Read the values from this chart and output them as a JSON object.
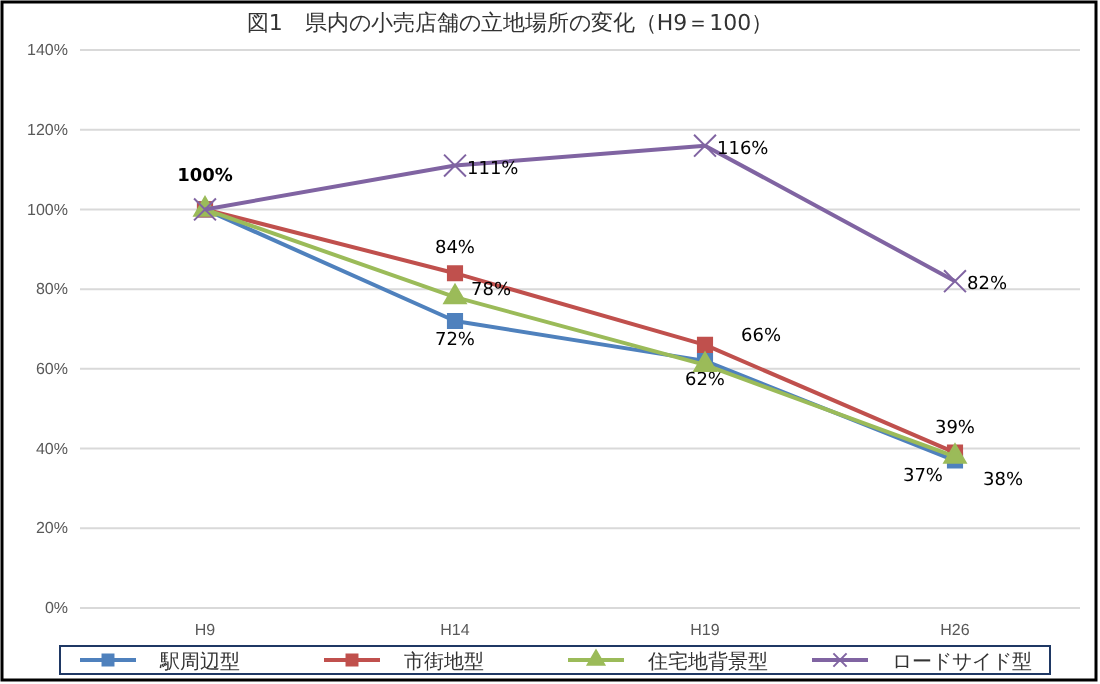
{
  "chart_data": {
    "type": "line",
    "title": "図1　県内の小売店舗の立地場所の変化（H9＝100）",
    "categories": [
      "H9",
      "H14",
      "H19",
      "H26"
    ],
    "series": [
      {
        "name": "駅周辺型",
        "color": "#4f81bd",
        "marker": "square",
        "values": [
          100,
          72,
          62,
          37
        ],
        "value_labels": [
          null,
          "72%",
          "62%",
          "37%"
        ]
      },
      {
        "name": "市街地型",
        "color": "#c0504d",
        "marker": "square",
        "values": [
          100,
          84,
          66,
          39
        ],
        "value_labels": [
          "100%",
          "84%",
          "66%",
          "39%"
        ]
      },
      {
        "name": "住宅地背景型",
        "color": "#9bbb59",
        "marker": "triangle",
        "values": [
          100,
          78,
          61,
          38
        ],
        "value_labels": [
          null,
          "78%",
          null,
          "38%"
        ]
      },
      {
        "name": "ロードサイド型",
        "color": "#8064a2",
        "marker": "cross",
        "values": [
          100,
          111,
          116,
          82
        ],
        "value_labels": [
          null,
          "111%",
          "116%",
          "82%"
        ]
      }
    ],
    "ylim": [
      0,
      140
    ],
    "yticks": [
      {
        "value": 0,
        "label": "0%"
      },
      {
        "value": 20,
        "label": "20%"
      },
      {
        "value": 40,
        "label": "40%"
      },
      {
        "value": 60,
        "label": "60%"
      },
      {
        "value": 80,
        "label": "80%"
      },
      {
        "value": 100,
        "label": "100%"
      },
      {
        "value": 120,
        "label": "120%"
      },
      {
        "value": 140,
        "label": "140%"
      }
    ],
    "grid": "y",
    "legend": "bottom"
  }
}
